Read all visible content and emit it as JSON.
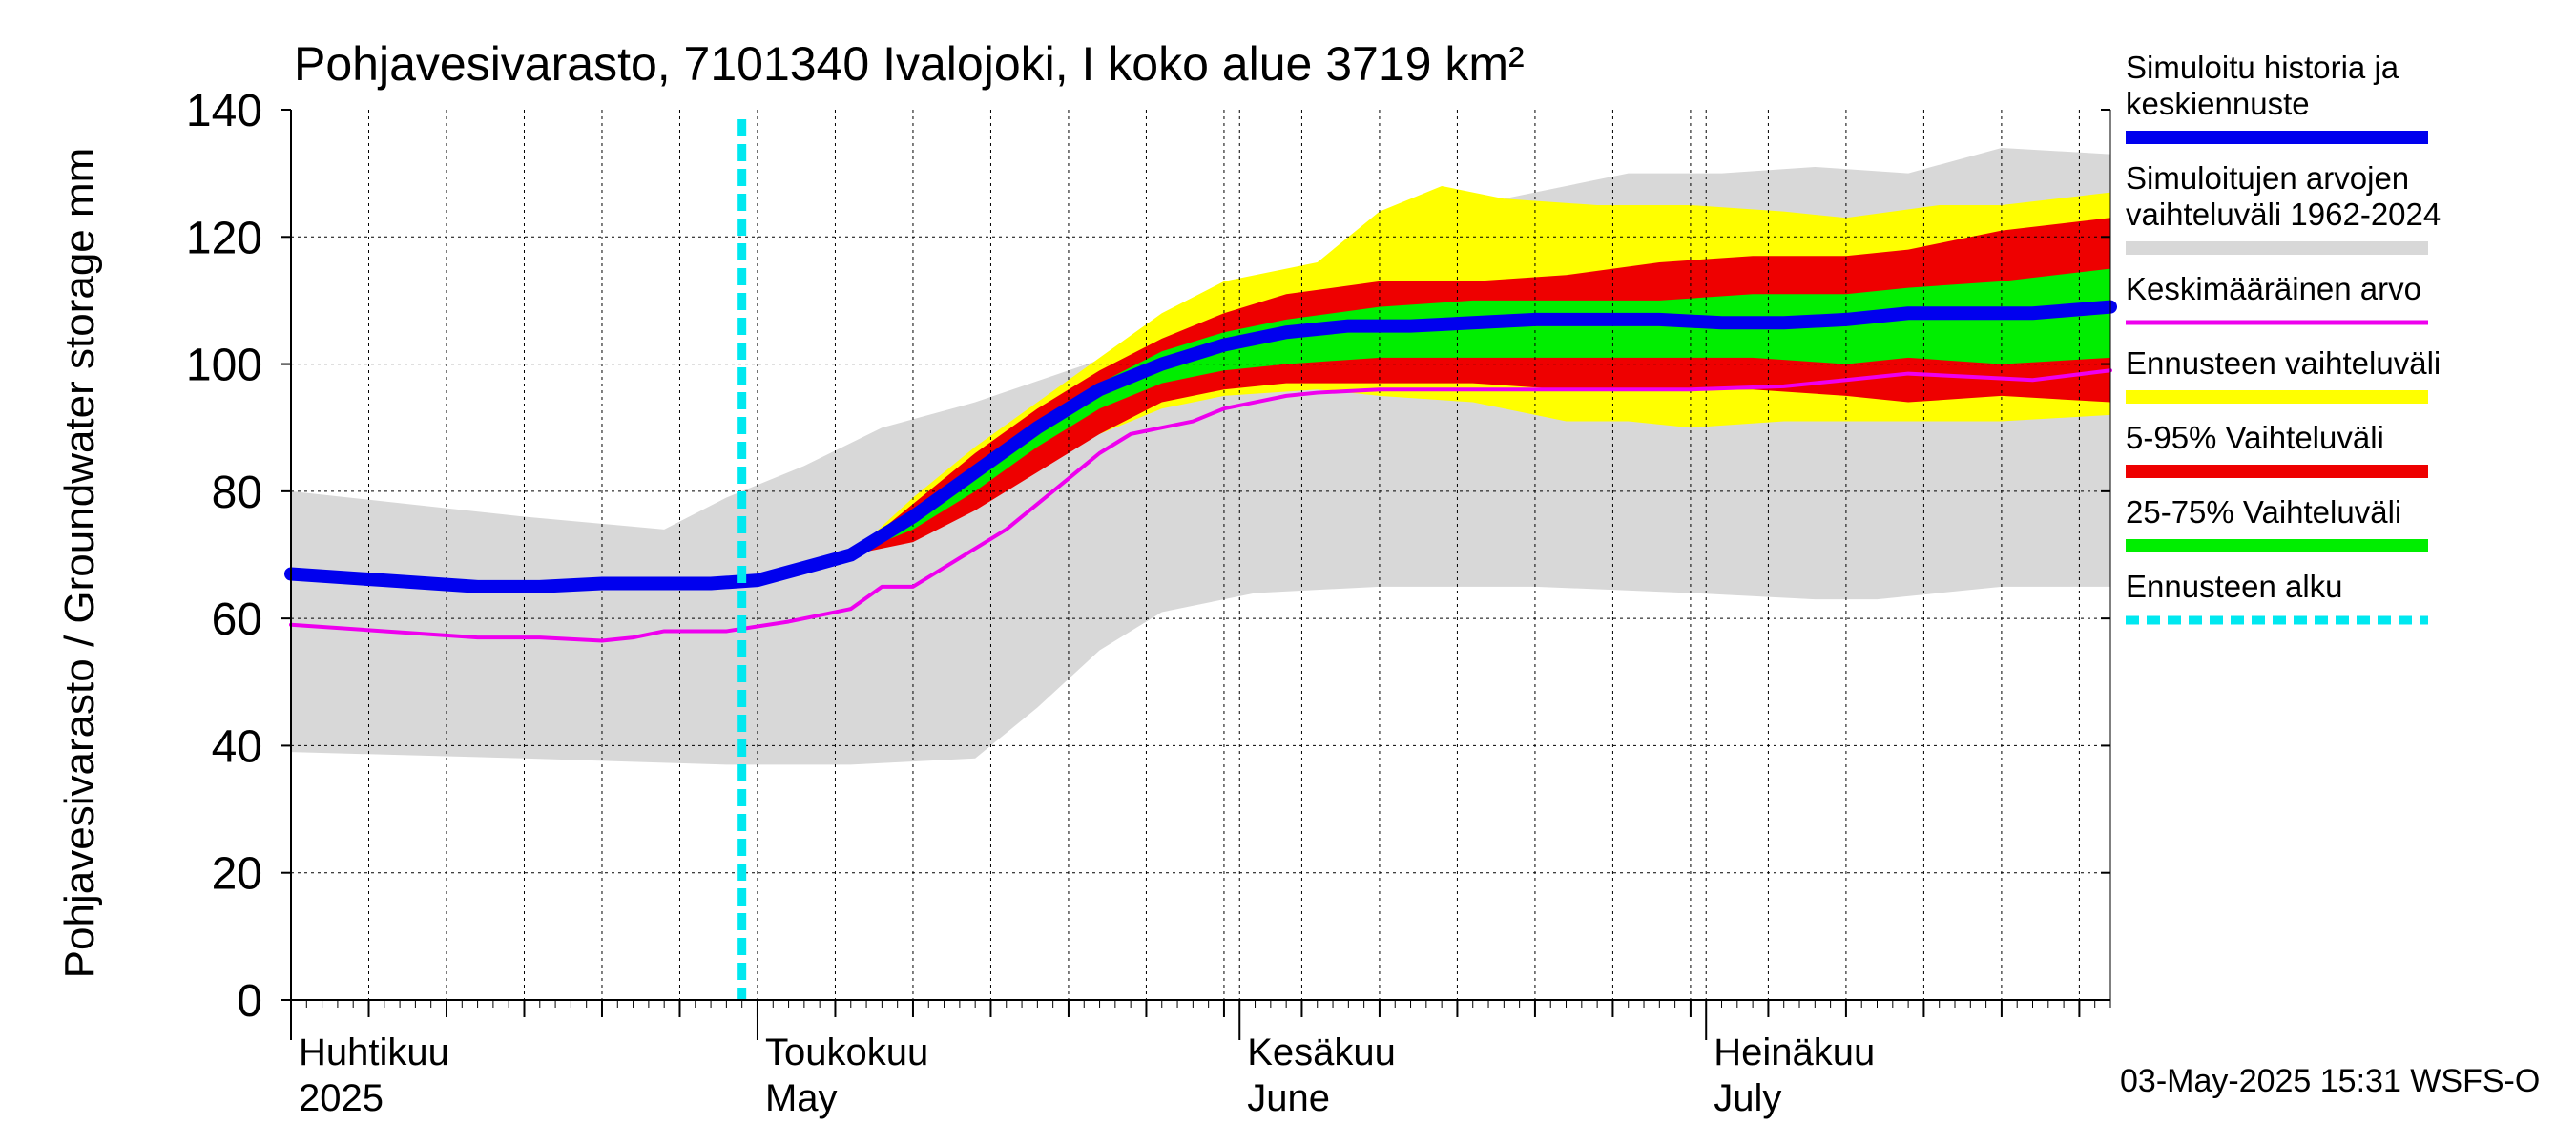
{
  "chart_data": {
    "type": "area",
    "title": "Pohjavesivarasto, 7101340 Ivalojoki, I koko alue 3719 km²",
    "ylabel": "Pohjavesivarasto / Groundwater storage   mm",
    "ylim": [
      0,
      140
    ],
    "yticks": [
      "0",
      "20",
      "40",
      "60",
      "80",
      "100",
      "120",
      "140"
    ],
    "x_range_days": [
      0,
      117
    ],
    "x_start": "2025-04-01",
    "month_labels": [
      {
        "day": 0,
        "line1": "Huhtikuu",
        "line2": "2025"
      },
      {
        "day": 30,
        "line1": "Toukokuu",
        "line2": "May"
      },
      {
        "day": 61,
        "line1": "Kesäkuu",
        "line2": "June"
      },
      {
        "day": 91,
        "line1": "Heinäkuu",
        "line2": "July"
      }
    ],
    "forecast_start_day": 29,
    "timestamp": "03-May-2025 15:31 WSFS-O",
    "colors": {
      "simulated": "#0000ee",
      "range_hist": "#d8d8d8",
      "mean": "#ee00ee",
      "forecast_range": "#ffff00",
      "p5_95": "#ee0000",
      "p25_75": "#00ee00",
      "forecast_start": "#00e8f0"
    },
    "bands": [
      {
        "name": "range_hist",
        "upper": [
          [
            0,
            80
          ],
          [
            15,
            76
          ],
          [
            24,
            74
          ],
          [
            28,
            79
          ],
          [
            33,
            84
          ],
          [
            38,
            90
          ],
          [
            44,
            94
          ],
          [
            50,
            99
          ],
          [
            56,
            104
          ],
          [
            62,
            110
          ],
          [
            68,
            118
          ],
          [
            74,
            124
          ],
          [
            80,
            127
          ],
          [
            86,
            130
          ],
          [
            92,
            130
          ],
          [
            98,
            131
          ],
          [
            104,
            130
          ],
          [
            110,
            134
          ],
          [
            117,
            133
          ]
        ],
        "lower": [
          [
            0,
            39
          ],
          [
            15,
            38
          ],
          [
            28,
            37
          ],
          [
            36,
            37
          ],
          [
            44,
            38
          ],
          [
            48,
            46
          ],
          [
            52,
            55
          ],
          [
            56,
            61
          ],
          [
            62,
            64
          ],
          [
            70,
            65
          ],
          [
            80,
            65
          ],
          [
            90,
            64
          ],
          [
            98,
            63
          ],
          [
            102,
            63
          ],
          [
            110,
            65
          ],
          [
            117,
            65
          ]
        ]
      },
      {
        "name": "forecast_range",
        "upper": [
          [
            36,
            70
          ],
          [
            40,
            79
          ],
          [
            44,
            87
          ],
          [
            48,
            94
          ],
          [
            52,
            101
          ],
          [
            56,
            108
          ],
          [
            60,
            113
          ],
          [
            66,
            116
          ],
          [
            70,
            124
          ],
          [
            74,
            128
          ],
          [
            78,
            126
          ],
          [
            84,
            125
          ],
          [
            90,
            125
          ],
          [
            96,
            124
          ],
          [
            100,
            123
          ],
          [
            106,
            125
          ],
          [
            110,
            125
          ],
          [
            117,
            127
          ]
        ],
        "lower": [
          [
            36,
            70
          ],
          [
            40,
            73
          ],
          [
            44,
            78
          ],
          [
            48,
            84
          ],
          [
            52,
            89
          ],
          [
            56,
            93
          ],
          [
            60,
            95
          ],
          [
            66,
            96
          ],
          [
            70,
            95
          ],
          [
            76,
            94
          ],
          [
            82,
            91
          ],
          [
            86,
            91
          ],
          [
            90,
            90
          ],
          [
            96,
            91
          ],
          [
            100,
            91
          ],
          [
            106,
            91
          ],
          [
            110,
            91
          ],
          [
            117,
            92
          ]
        ]
      },
      {
        "name": "p5_95",
        "upper": [
          [
            36,
            70
          ],
          [
            40,
            78
          ],
          [
            44,
            86
          ],
          [
            48,
            93
          ],
          [
            52,
            99
          ],
          [
            56,
            104
          ],
          [
            60,
            108
          ],
          [
            64,
            111
          ],
          [
            70,
            113
          ],
          [
            76,
            113
          ],
          [
            82,
            114
          ],
          [
            88,
            116
          ],
          [
            94,
            117
          ],
          [
            100,
            117
          ],
          [
            104,
            118
          ],
          [
            110,
            121
          ],
          [
            117,
            123
          ]
        ],
        "lower": [
          [
            36,
            70
          ],
          [
            40,
            72
          ],
          [
            44,
            77
          ],
          [
            48,
            83
          ],
          [
            52,
            89
          ],
          [
            56,
            94
          ],
          [
            60,
            96
          ],
          [
            64,
            97
          ],
          [
            70,
            97
          ],
          [
            76,
            97
          ],
          [
            82,
            96
          ],
          [
            88,
            96
          ],
          [
            94,
            96
          ],
          [
            100,
            95
          ],
          [
            104,
            94
          ],
          [
            110,
            95
          ],
          [
            117,
            94
          ]
        ]
      },
      {
        "name": "p25_75",
        "upper": [
          [
            36,
            70
          ],
          [
            40,
            77
          ],
          [
            44,
            84
          ],
          [
            48,
            91
          ],
          [
            52,
            97
          ],
          [
            56,
            102
          ],
          [
            60,
            105
          ],
          [
            64,
            107
          ],
          [
            70,
            109
          ],
          [
            76,
            110
          ],
          [
            82,
            110
          ],
          [
            88,
            110
          ],
          [
            94,
            111
          ],
          [
            100,
            111
          ],
          [
            104,
            112
          ],
          [
            110,
            113
          ],
          [
            117,
            115
          ]
        ],
        "lower": [
          [
            36,
            70
          ],
          [
            40,
            74
          ],
          [
            44,
            80
          ],
          [
            48,
            87
          ],
          [
            52,
            93
          ],
          [
            56,
            97
          ],
          [
            60,
            99
          ],
          [
            64,
            100
          ],
          [
            70,
            101
          ],
          [
            76,
            101
          ],
          [
            82,
            101
          ],
          [
            88,
            101
          ],
          [
            94,
            101
          ],
          [
            100,
            100
          ],
          [
            104,
            101
          ],
          [
            110,
            100
          ],
          [
            117,
            101
          ]
        ]
      }
    ],
    "series": [
      {
        "name": "mean",
        "points": [
          [
            0,
            59
          ],
          [
            6,
            58
          ],
          [
            12,
            57
          ],
          [
            16,
            57
          ],
          [
            20,
            56.5
          ],
          [
            22,
            57
          ],
          [
            24,
            58
          ],
          [
            28,
            58
          ],
          [
            32,
            59.5
          ],
          [
            34,
            60.5
          ],
          [
            36,
            61.5
          ],
          [
            38,
            65
          ],
          [
            40,
            65
          ],
          [
            42,
            68
          ],
          [
            44,
            71
          ],
          [
            46,
            74
          ],
          [
            48,
            78
          ],
          [
            50,
            82
          ],
          [
            52,
            86
          ],
          [
            54,
            89
          ],
          [
            56,
            90
          ],
          [
            58,
            91
          ],
          [
            60,
            93
          ],
          [
            62,
            94
          ],
          [
            64,
            95
          ],
          [
            66,
            95.5
          ],
          [
            70,
            96
          ],
          [
            74,
            96
          ],
          [
            78,
            96
          ],
          [
            84,
            96
          ],
          [
            90,
            96
          ],
          [
            96,
            96.5
          ],
          [
            100,
            97.5
          ],
          [
            104,
            98.5
          ],
          [
            108,
            98
          ],
          [
            112,
            97.5
          ],
          [
            117,
            99
          ]
        ]
      },
      {
        "name": "simulated",
        "points": [
          [
            0,
            67
          ],
          [
            6,
            66
          ],
          [
            12,
            65
          ],
          [
            16,
            65
          ],
          [
            20,
            65.5
          ],
          [
            24,
            65.5
          ],
          [
            27,
            65.5
          ],
          [
            30,
            66
          ],
          [
            33,
            68
          ],
          [
            36,
            70
          ],
          [
            40,
            76
          ],
          [
            44,
            83
          ],
          [
            48,
            90
          ],
          [
            52,
            96
          ],
          [
            56,
            100
          ],
          [
            60,
            103
          ],
          [
            64,
            105
          ],
          [
            68,
            106
          ],
          [
            72,
            106
          ],
          [
            76,
            106.5
          ],
          [
            80,
            107
          ],
          [
            84,
            107
          ],
          [
            88,
            107
          ],
          [
            92,
            106.5
          ],
          [
            96,
            106.5
          ],
          [
            100,
            107
          ],
          [
            104,
            108
          ],
          [
            108,
            108
          ],
          [
            112,
            108
          ],
          [
            117,
            109
          ]
        ]
      }
    ],
    "legend": [
      {
        "key": "simulated",
        "label": "Simuloitu historia ja keskiennuste",
        "lines": [
          "Simuloitu historia ja",
          "keskiennuste"
        ]
      },
      {
        "key": "range_hist",
        "label": "Simuloitujen arvojen vaihteluväli 1962-2024",
        "lines": [
          "Simuloitujen arvojen",
          "vaihteluväli 1962-2024"
        ]
      },
      {
        "key": "mean",
        "label": "Keskimääräinen arvo",
        "lines": [
          "Keskimääräinen arvo"
        ]
      },
      {
        "key": "forecast_range",
        "label": "Ennusteen vaihteluväli",
        "lines": [
          "Ennusteen vaihteluväli"
        ]
      },
      {
        "key": "p5_95",
        "label": "5-95% Vaihteluväli",
        "lines": [
          "5-95% Vaihteluväli"
        ]
      },
      {
        "key": "p25_75",
        "label": "25-75% Vaihteluväli",
        "lines": [
          "25-75% Vaihteluväli"
        ]
      },
      {
        "key": "forecast_start",
        "label": "Ennusteen alku",
        "lines": [
          "Ennusteen alku"
        ]
      }
    ]
  }
}
